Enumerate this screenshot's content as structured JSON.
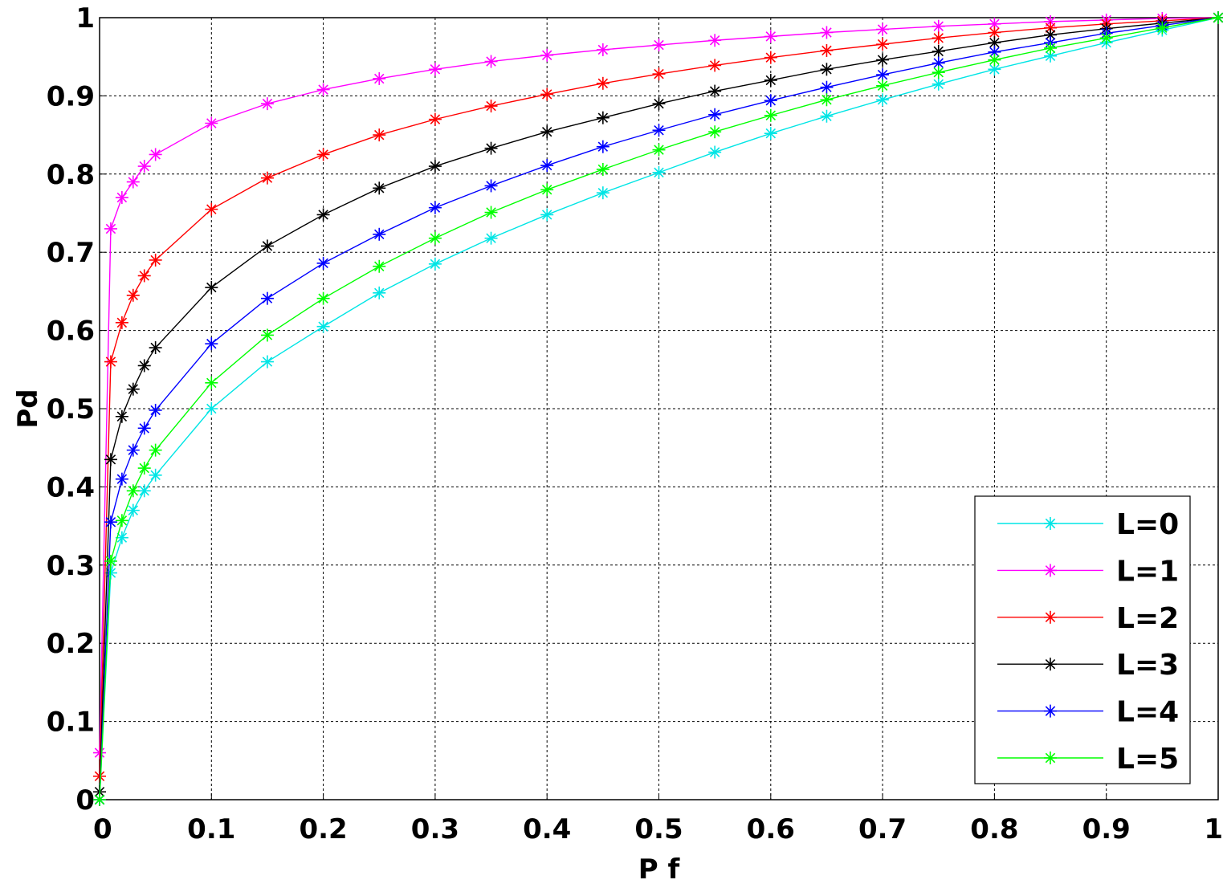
{
  "chart_data": {
    "type": "line",
    "title": "",
    "xlabel": "P f",
    "ylabel": "Pd",
    "xlim": [
      0,
      1
    ],
    "ylim": [
      0,
      1
    ],
    "grid": true,
    "legend_position": "bottom-right",
    "x_ticks": [
      "0",
      "0.1",
      "0.2",
      "0.3",
      "0.4",
      "0.5",
      "0.6",
      "0.7",
      "0.8",
      "0.9",
      "1"
    ],
    "y_ticks": [
      "0",
      "0.1",
      "0.2",
      "0.3",
      "0.4",
      "0.5",
      "0.6",
      "0.7",
      "0.8",
      "0.9",
      "1"
    ],
    "x": [
      0,
      0.01,
      0.02,
      0.03,
      0.04,
      0.05,
      0.1,
      0.15,
      0.2,
      0.25,
      0.3,
      0.35,
      0.4,
      0.45,
      0.5,
      0.55,
      0.6,
      0.65,
      0.7,
      0.75,
      0.8,
      0.85,
      0.9,
      0.95,
      1
    ],
    "marker": "asterisk",
    "series": [
      {
        "name": "L=0",
        "color": "#00e5e5",
        "values": [
          0.0,
          0.29,
          0.335,
          0.37,
          0.395,
          0.415,
          0.5,
          0.56,
          0.605,
          0.648,
          0.685,
          0.718,
          0.748,
          0.776,
          0.802,
          0.828,
          0.852,
          0.874,
          0.895,
          0.915,
          0.934,
          0.951,
          0.968,
          0.984,
          1.0
        ]
      },
      {
        "name": "L=1",
        "color": "#ff00ff",
        "values": [
          0.06,
          0.73,
          0.77,
          0.79,
          0.81,
          0.825,
          0.865,
          0.89,
          0.908,
          0.922,
          0.934,
          0.944,
          0.952,
          0.959,
          0.965,
          0.971,
          0.976,
          0.981,
          0.985,
          0.989,
          0.992,
          0.995,
          0.997,
          0.999,
          1.0
        ]
      },
      {
        "name": "L=2",
        "color": "#ff0000",
        "values": [
          0.03,
          0.56,
          0.61,
          0.645,
          0.67,
          0.69,
          0.755,
          0.795,
          0.825,
          0.85,
          0.87,
          0.887,
          0.902,
          0.916,
          0.928,
          0.939,
          0.949,
          0.958,
          0.966,
          0.974,
          0.981,
          0.987,
          0.992,
          0.996,
          1.0
        ]
      },
      {
        "name": "L=3",
        "color": "#000000",
        "values": [
          0.01,
          0.435,
          0.49,
          0.525,
          0.555,
          0.578,
          0.655,
          0.708,
          0.748,
          0.782,
          0.81,
          0.833,
          0.854,
          0.872,
          0.89,
          0.906,
          0.92,
          0.934,
          0.946,
          0.957,
          0.968,
          0.978,
          0.986,
          0.993,
          1.0
        ]
      },
      {
        "name": "L=4",
        "color": "#0000ff",
        "values": [
          0.0,
          0.355,
          0.41,
          0.447,
          0.475,
          0.498,
          0.583,
          0.641,
          0.686,
          0.723,
          0.757,
          0.785,
          0.811,
          0.835,
          0.856,
          0.876,
          0.894,
          0.911,
          0.927,
          0.942,
          0.956,
          0.968,
          0.98,
          0.99,
          1.0
        ]
      },
      {
        "name": "L=5",
        "color": "#00ff00",
        "values": [
          0.0,
          0.305,
          0.357,
          0.395,
          0.424,
          0.447,
          0.533,
          0.594,
          0.641,
          0.682,
          0.718,
          0.751,
          0.78,
          0.806,
          0.831,
          0.854,
          0.875,
          0.895,
          0.913,
          0.93,
          0.946,
          0.961,
          0.974,
          0.987,
          1.0
        ]
      }
    ]
  }
}
